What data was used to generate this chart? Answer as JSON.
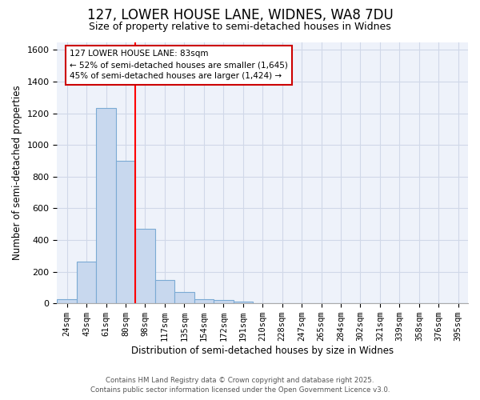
{
  "title": "127, LOWER HOUSE LANE, WIDNES, WA8 7DU",
  "subtitle": "Size of property relative to semi-detached houses in Widnes",
  "xlabel": "Distribution of semi-detached houses by size in Widnes",
  "ylabel": "Number of semi-detached properties",
  "categories": [
    "24sqm",
    "43sqm",
    "61sqm",
    "80sqm",
    "98sqm",
    "117sqm",
    "135sqm",
    "154sqm",
    "172sqm",
    "191sqm",
    "210sqm",
    "228sqm",
    "247sqm",
    "265sqm",
    "284sqm",
    "302sqm",
    "321sqm",
    "339sqm",
    "358sqm",
    "376sqm",
    "395sqm"
  ],
  "values": [
    27,
    265,
    1235,
    900,
    470,
    150,
    70,
    28,
    20,
    13,
    0,
    0,
    0,
    0,
    0,
    0,
    0,
    0,
    0,
    0,
    0
  ],
  "bar_color": "#c8d8ee",
  "bar_edge_color": "#7baad4",
  "grid_color": "#d0d8e8",
  "bg_color": "#ffffff",
  "plot_bg_color": "#eef2fa",
  "annotation_line1": "127 LOWER HOUSE LANE: 83sqm",
  "annotation_line2": "← 52% of semi-detached houses are smaller (1,645)",
  "annotation_line3": "45% of semi-detached houses are larger (1,424) →",
  "annotation_box_color": "#ffffff",
  "annotation_box_edge": "#cc0000",
  "red_line_index": 3.5,
  "ylim": [
    0,
    1650
  ],
  "yticks": [
    0,
    200,
    400,
    600,
    800,
    1000,
    1200,
    1400,
    1600
  ],
  "title_fontsize": 12,
  "subtitle_fontsize": 9,
  "footer_line1": "Contains HM Land Registry data © Crown copyright and database right 2025.",
  "footer_line2": "Contains public sector information licensed under the Open Government Licence v3.0."
}
